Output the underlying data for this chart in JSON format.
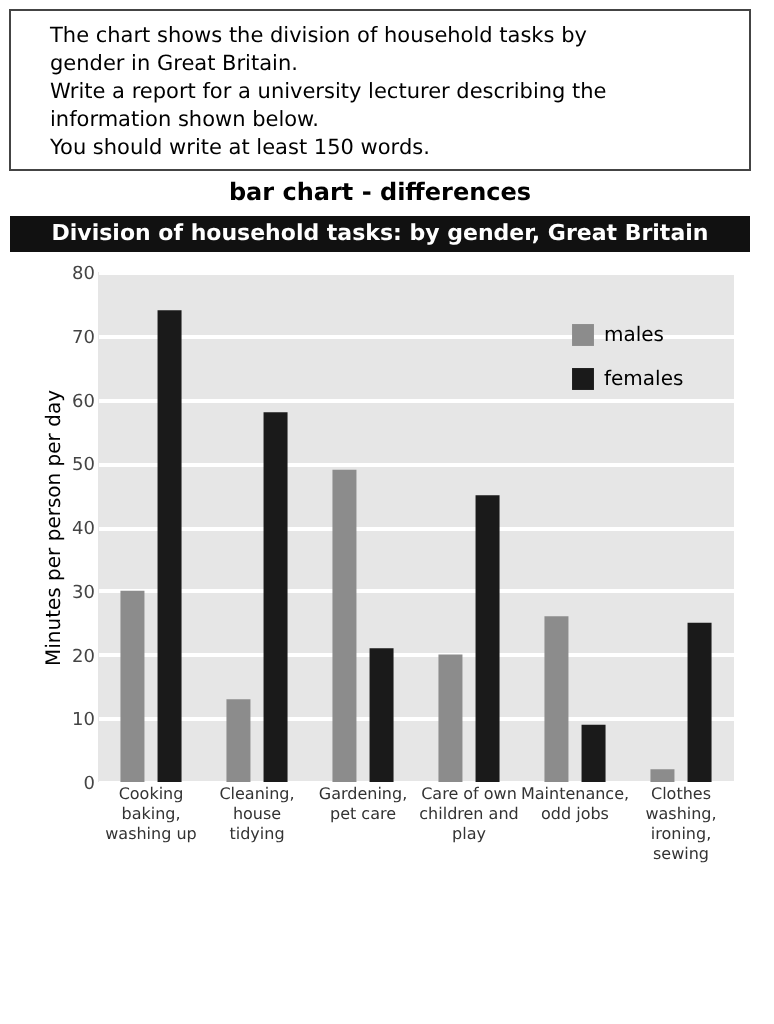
{
  "chart_data": {
    "type": "bar",
    "title": "Division of household tasks: by gender, Great Britain",
    "annotations": [
      "The chart shows the division of household tasks by gender in Great Britain.",
      "Write a report for a university lecturer describing the information shown below.",
      "You should write at least 150 words.",
      "bar chart - differences"
    ],
    "ylabel": "Minutes per person per day",
    "categories": [
      "Cooking baking, washing up",
      "Cleaning, house tidying",
      "Gardening, pet care",
      "Care of own children and play",
      "Maintenance, odd jobs",
      "Clothes washing, ironing, sewing"
    ],
    "series": [
      {
        "name": "males",
        "color": "#8c8c8c",
        "values": [
          30,
          13,
          49,
          20,
          26,
          2
        ]
      },
      {
        "name": "females",
        "color": "#1a1a1a",
        "values": [
          74,
          58,
          21,
          45,
          9,
          25
        ]
      }
    ],
    "ylim": [
      0,
      80
    ],
    "yticks": [
      0,
      10,
      20,
      30,
      40,
      50,
      60,
      70,
      80
    ],
    "grid": "y",
    "legend": "top right"
  }
}
